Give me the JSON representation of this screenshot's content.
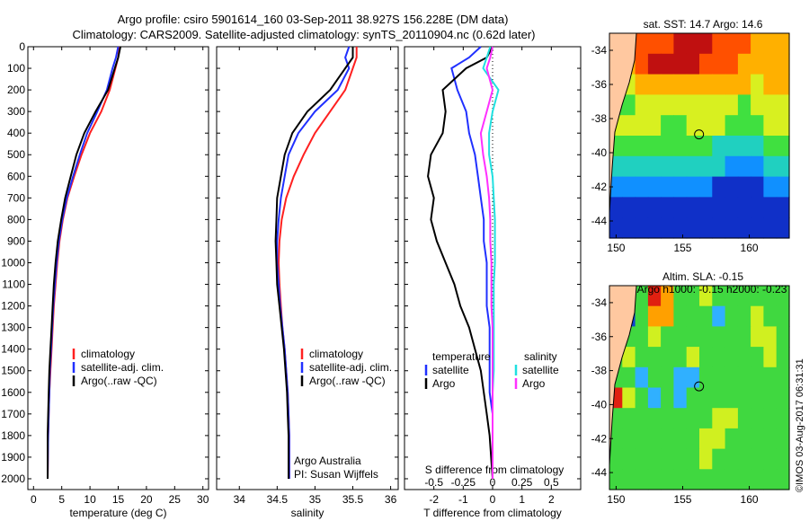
{
  "header": {
    "line1": "Argo profile: csiro 5901614_160 03-Sep-2011 38.927S 156.228E (DM data)",
    "line2": "Climatology: CARS2009. Satellite-adjusted climatology: synTS_20110904.nc (0.62d later)"
  },
  "credit": {
    "line1": "Argo Australia",
    "line2": "PI: Susan Wijffels"
  },
  "stamp": "©IMOS 03-Aug-2017 06:31:31",
  "colors": {
    "climatology": "#ff2020",
    "satellite": "#2030ff",
    "argo": "#000000",
    "satellite_s": "#20e0e0",
    "argo_s": "#ff30ff",
    "land": "#ffc8a0"
  },
  "chart_data": [
    {
      "type": "line",
      "id": "temperature",
      "xlabel": "temperature (deg C)",
      "ylabel": "",
      "xlim": [
        -1,
        31
      ],
      "ylim": [
        2050,
        0
      ],
      "xticks": [
        0,
        5,
        10,
        15,
        20,
        25,
        30
      ],
      "yticks": [
        0,
        100,
        200,
        300,
        400,
        500,
        600,
        700,
        800,
        900,
        1000,
        1100,
        1200,
        1300,
        1400,
        1500,
        1600,
        1700,
        1800,
        1900,
        2000
      ],
      "legend": {
        "position": "lower-left",
        "entries": [
          "climatology",
          "satellite-adj. clim.",
          "Argo(..raw -QC)"
        ]
      },
      "series": [
        {
          "name": "climatology",
          "color": "#ff2020",
          "x": [
            15.2,
            15.0,
            14.5,
            13.5,
            12.0,
            10.0,
            8.5,
            7.2,
            6.0,
            5.2,
            4.6,
            4.2,
            3.9,
            3.6,
            3.4,
            3.2,
            3.0,
            2.8,
            2.7,
            2.6,
            2.5
          ],
          "y": [
            0,
            50,
            100,
            200,
            300,
            400,
            500,
            600,
            700,
            800,
            900,
            1000,
            1100,
            1200,
            1300,
            1400,
            1500,
            1600,
            1700,
            1800,
            2000
          ]
        },
        {
          "name": "satellite-adj. clim.",
          "color": "#2030ff",
          "x": [
            15.0,
            14.6,
            14.0,
            13.0,
            11.3,
            9.5,
            8.2,
            7.0,
            5.9,
            5.1,
            4.5,
            4.1,
            3.8,
            3.5,
            3.3,
            3.1,
            2.9,
            2.8,
            2.7,
            2.6,
            2.5
          ],
          "y": [
            0,
            50,
            100,
            200,
            300,
            400,
            500,
            600,
            700,
            800,
            900,
            1000,
            1100,
            1200,
            1300,
            1400,
            1500,
            1600,
            1700,
            1800,
            2000
          ]
        },
        {
          "name": "Argo(..raw -QC)",
          "color": "#000000",
          "x": [
            15.4,
            15.0,
            14.4,
            13.2,
            11.0,
            9.0,
            7.6,
            6.6,
            5.6,
            4.9,
            4.3,
            3.9,
            3.6,
            3.4,
            3.2,
            3.0,
            2.8,
            2.7,
            2.6,
            2.5,
            2.5
          ],
          "y": [
            0,
            50,
            100,
            200,
            300,
            400,
            500,
            600,
            700,
            800,
            900,
            1000,
            1100,
            1200,
            1300,
            1400,
            1500,
            1600,
            1700,
            1800,
            2000
          ]
        }
      ]
    },
    {
      "type": "line",
      "id": "salinity",
      "xlabel": "salinity",
      "ylabel": "",
      "xlim": [
        33.7,
        36.1
      ],
      "ylim": [
        2050,
        0
      ],
      "xticks": [
        34,
        34.5,
        35,
        35.5,
        36
      ],
      "xticklabels": [
        "34",
        "34.5",
        "35",
        "35.5",
        "36"
      ],
      "legend": {
        "position": "lower-right",
        "entries": [
          "climatology",
          "satellite-adj. clim.",
          "Argo(..raw -QC)"
        ]
      },
      "series": [
        {
          "name": "climatology",
          "color": "#ff2020",
          "x": [
            35.55,
            35.55,
            35.5,
            35.4,
            35.2,
            35.0,
            34.85,
            34.72,
            34.62,
            34.56,
            34.53,
            34.52,
            34.53,
            34.55,
            34.57,
            34.6,
            34.62,
            34.64,
            34.65,
            34.66,
            34.66
          ],
          "y": [
            0,
            50,
            100,
            200,
            300,
            400,
            500,
            600,
            700,
            800,
            900,
            1000,
            1100,
            1200,
            1300,
            1400,
            1500,
            1600,
            1700,
            1800,
            2000
          ]
        },
        {
          "name": "satellite-adj. clim.",
          "color": "#2030ff",
          "x": [
            35.45,
            35.4,
            35.45,
            35.3,
            35.0,
            34.78,
            34.65,
            34.6,
            34.55,
            34.52,
            34.5,
            34.5,
            34.52,
            34.54,
            34.57,
            34.6,
            34.62,
            34.64,
            34.65,
            34.66,
            34.66
          ],
          "y": [
            0,
            50,
            100,
            200,
            300,
            400,
            500,
            600,
            700,
            800,
            900,
            1000,
            1100,
            1200,
            1300,
            1400,
            1500,
            1600,
            1700,
            1800,
            2000
          ]
        },
        {
          "name": "Argo(..raw -QC)",
          "color": "#000000",
          "x": [
            35.5,
            35.5,
            35.4,
            35.2,
            34.9,
            34.7,
            34.6,
            34.55,
            34.5,
            34.49,
            34.48,
            34.49,
            34.5,
            34.53,
            34.56,
            34.59,
            34.61,
            34.63,
            34.64,
            34.65,
            34.65
          ],
          "y": [
            0,
            50,
            100,
            200,
            300,
            400,
            500,
            600,
            700,
            800,
            900,
            1000,
            1100,
            1200,
            1300,
            1400,
            1500,
            1600,
            1700,
            1800,
            2000
          ]
        }
      ]
    },
    {
      "type": "line",
      "id": "difference",
      "xlabel": "T difference from climatology",
      "x2label": "S difference from climatology",
      "ylabel": "",
      "xlim": [
        -3,
        3
      ],
      "ylim": [
        2050,
        0
      ],
      "xticks": [
        -2,
        -1,
        0,
        1,
        2
      ],
      "xticklabels": [
        "-2",
        "-1",
        "0",
        "1",
        "2"
      ],
      "x2ticks": [
        -0.5,
        -0.25,
        0,
        0.25,
        0.5
      ],
      "x2ticklabels": [
        "-0.5",
        "-0.25",
        "0",
        "0.25",
        "0.5"
      ],
      "s_scale": 0.25,
      "legend": {
        "position": "lower-center",
        "temperature_title": "temperature",
        "salinity_title": "salinity",
        "entries": [
          "satellite",
          "Argo"
        ]
      },
      "series": [
        {
          "name": "temperature satellite",
          "color": "#2030ff",
          "x": [
            -0.4,
            -0.8,
            -1.4,
            -1.2,
            -0.9,
            -0.8,
            -0.6,
            -0.5,
            -0.4,
            -0.3,
            -0.3,
            -0.2,
            -0.2,
            -0.2,
            -0.1,
            -0.1,
            -0.1,
            -0.1,
            0.0,
            0.0,
            0.0
          ],
          "y": [
            0,
            50,
            100,
            200,
            300,
            400,
            500,
            600,
            700,
            800,
            900,
            1000,
            1100,
            1200,
            1300,
            1400,
            1500,
            1600,
            1700,
            1800,
            2000
          ]
        },
        {
          "name": "temperature Argo",
          "color": "#000000",
          "x": [
            0.0,
            -0.2,
            -0.9,
            -1.7,
            -1.6,
            -1.7,
            -2.1,
            -2.2,
            -2.0,
            -2.1,
            -1.9,
            -1.6,
            -1.3,
            -1.1,
            -0.8,
            -0.6,
            -0.4,
            -0.3,
            -0.2,
            -0.1,
            0.0
          ],
          "y": [
            0,
            50,
            100,
            200,
            300,
            400,
            500,
            600,
            700,
            800,
            900,
            1000,
            1100,
            1200,
            1300,
            1400,
            1500,
            1600,
            1700,
            1800,
            2000
          ]
        },
        {
          "name": "salinity satellite",
          "color": "#20e0e0",
          "x": [
            -0.02,
            -0.05,
            -0.08,
            0.05,
            0.0,
            -0.03,
            -0.03,
            0.0,
            0.01,
            0.02,
            0.02,
            0.02,
            0.01,
            0.01,
            0.01,
            0.01,
            0.01,
            0.0,
            0.0,
            0.0,
            0.0
          ],
          "y": [
            0,
            50,
            100,
            200,
            300,
            400,
            500,
            600,
            700,
            800,
            900,
            1000,
            1100,
            1200,
            1300,
            1400,
            1500,
            1600,
            1700,
            1800,
            2000
          ]
        },
        {
          "name": "salinity Argo",
          "color": "#ff30ff",
          "x": [
            0.0,
            -0.02,
            -0.05,
            0.0,
            -0.05,
            -0.1,
            -0.08,
            -0.05,
            -0.03,
            -0.02,
            -0.02,
            -0.01,
            -0.01,
            -0.01,
            0.0,
            0.0,
            0.0,
            0.0,
            0.0,
            0.0,
            0.0
          ],
          "y": [
            0,
            50,
            100,
            200,
            300,
            400,
            500,
            600,
            700,
            800,
            900,
            1000,
            1100,
            1200,
            1300,
            1400,
            1500,
            1600,
            1700,
            1800,
            2000
          ]
        }
      ]
    },
    {
      "type": "heatmap",
      "id": "sst-map",
      "title": "sat. SST: 14.7 Argo: 14.6",
      "xlim": [
        149.5,
        163
      ],
      "ylim": [
        -45,
        -33
      ],
      "xticks": [
        150,
        155,
        160
      ],
      "yticks": [
        -34,
        -36,
        -38,
        -40,
        -42,
        -44
      ],
      "float_position": [
        156.228,
        -38.927
      ],
      "rows_top_to_bottom": [
        [
          2,
          3,
          4,
          4,
          4,
          5,
          5,
          5,
          4,
          4,
          4,
          3,
          3,
          3
        ],
        [
          2,
          3,
          4,
          5,
          5,
          5,
          5,
          4,
          4,
          4,
          3,
          3,
          3,
          3
        ],
        [
          2,
          2,
          3,
          3,
          3,
          3,
          3,
          3,
          3,
          3,
          3,
          2,
          3,
          3
        ],
        [
          1,
          1,
          2,
          2,
          2,
          2,
          2,
          2,
          2,
          2,
          1,
          2,
          2,
          2
        ],
        [
          2,
          2,
          2,
          2,
          1,
          1,
          2,
          2,
          2,
          1,
          1,
          1,
          2,
          2
        ],
        [
          1,
          1,
          1,
          1,
          1,
          1,
          1,
          1,
          0,
          0,
          0,
          0,
          1,
          1
        ],
        [
          0,
          0,
          0,
          0,
          0,
          0,
          0,
          0,
          0,
          -1,
          -1,
          -1,
          0,
          0
        ],
        [
          -1,
          -1,
          -1,
          -1,
          -1,
          -1,
          -1,
          -1,
          -2,
          -2,
          -2,
          -2,
          -1,
          -1
        ],
        [
          -2,
          -2,
          -2,
          -2,
          -2,
          -2,
          -2,
          -2,
          -2,
          -2,
          -2,
          -2,
          -2,
          -2
        ],
        [
          -2,
          -2,
          -2,
          -2,
          -2,
          -2,
          -2,
          -2,
          -2,
          -2,
          -2,
          -2,
          -2,
          -2
        ]
      ]
    },
    {
      "type": "heatmap",
      "id": "sla-map",
      "title": "Altim. SLA: -0.15",
      "subtitle": "Argo h1000: -0.15 h2000: -0.23",
      "xlim": [
        149.5,
        163
      ],
      "ylim": [
        -45,
        -33
      ],
      "xticks": [
        150,
        155,
        160
      ],
      "yticks": [
        -34,
        -36,
        -38,
        -40,
        -42,
        -44
      ],
      "float_position": [
        156.228,
        -38.927
      ],
      "rows_top_to_bottom": [
        [
          0,
          -2,
          0,
          3,
          2,
          0,
          0,
          1,
          0,
          0,
          0,
          0,
          0,
          0
        ],
        [
          0,
          -2,
          0,
          2,
          2,
          0,
          0,
          0,
          -1,
          0,
          0,
          1,
          0,
          0
        ],
        [
          0,
          0,
          0,
          1,
          0,
          0,
          0,
          0,
          0,
          0,
          0,
          1,
          1,
          0
        ],
        [
          0,
          1,
          0,
          0,
          0,
          0,
          1,
          0,
          0,
          0,
          0,
          0,
          1,
          0
        ],
        [
          0,
          0,
          -1,
          0,
          0,
          -1,
          -1,
          0,
          0,
          0,
          0,
          0,
          0,
          0
        ],
        [
          3,
          1,
          0,
          -1,
          0,
          -1,
          0,
          0,
          0,
          0,
          0,
          0,
          0,
          0
        ],
        [
          0,
          0,
          0,
          0,
          0,
          0,
          0,
          0,
          1,
          1,
          0,
          0,
          0,
          0
        ],
        [
          0,
          0,
          0,
          0,
          0,
          0,
          0,
          1,
          1,
          0,
          0,
          0,
          0,
          0
        ],
        [
          0,
          0,
          0,
          0,
          0,
          0,
          0,
          1,
          0,
          0,
          0,
          0,
          0,
          0
        ],
        [
          0,
          0,
          0,
          0,
          0,
          0,
          0,
          0,
          0,
          0,
          0,
          0,
          0,
          0
        ]
      ]
    }
  ]
}
